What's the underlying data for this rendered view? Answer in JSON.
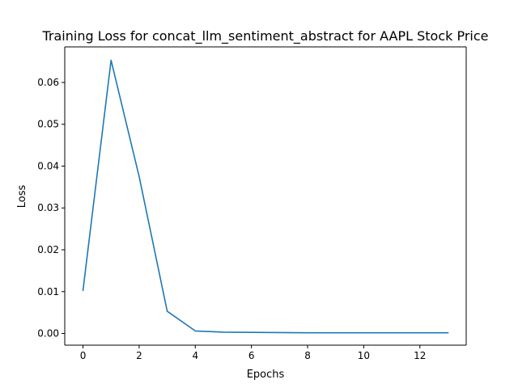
{
  "chart_data": {
    "type": "line",
    "title": "Training Loss for concat_llm_sentiment_abstract for AAPL Stock Price",
    "xlabel": "Epochs",
    "ylabel": "Loss",
    "xlim": [
      -0.65,
      13.65
    ],
    "ylim": [
      -0.0028,
      0.0685
    ],
    "x_ticks": [
      0,
      2,
      4,
      6,
      8,
      10,
      12
    ],
    "y_ticks": [
      0.0,
      0.01,
      0.02,
      0.03,
      0.04,
      0.05,
      0.06
    ],
    "x_tick_labels": [
      "0",
      "2",
      "4",
      "6",
      "8",
      "10",
      "12"
    ],
    "y_tick_labels": [
      "0.00",
      "0.01",
      "0.02",
      "0.03",
      "0.04",
      "0.05",
      "0.06"
    ],
    "grid": false,
    "series": [
      {
        "color": "#1f77b4",
        "x": [
          0,
          1,
          2,
          3,
          4,
          5,
          6,
          7,
          8,
          9,
          10,
          11,
          12,
          13
        ],
        "y": [
          0.0103,
          0.0653,
          0.0375,
          0.0053,
          0.0006,
          0.0003,
          0.00025,
          0.0002,
          0.00015,
          0.00015,
          0.00015,
          0.00015,
          0.00015,
          0.00015
        ]
      }
    ]
  }
}
